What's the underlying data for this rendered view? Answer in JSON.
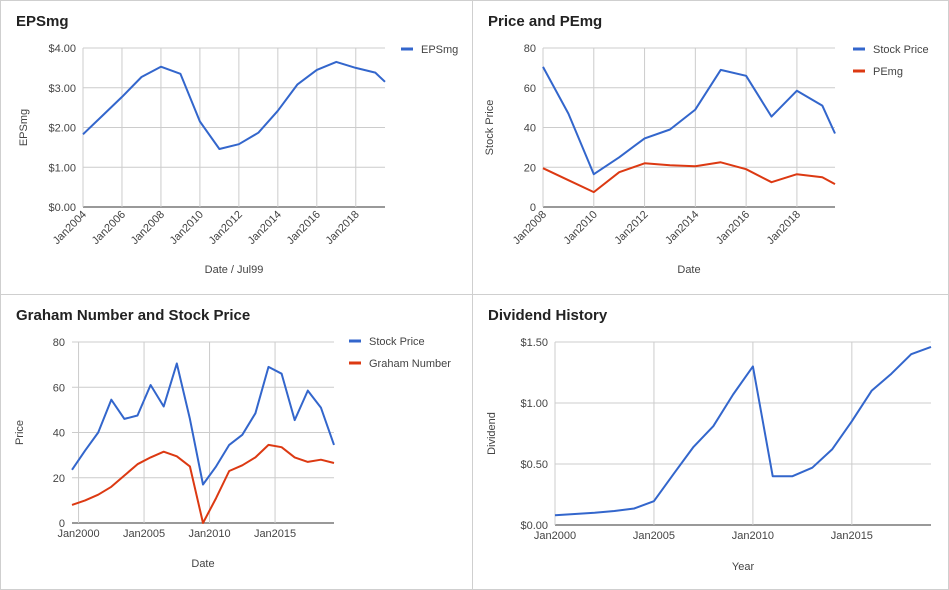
{
  "chart_data": [
    {
      "type": "line",
      "title": "EPSmg",
      "xlabel": "Date / Jul99",
      "ylabel": "EPSmg",
      "ylim": [
        0,
        4
      ],
      "yticks": [
        "$0.00",
        "$1.00",
        "$2.00",
        "$3.00",
        "$4.00"
      ],
      "xlim": [
        2004,
        2019.5
      ],
      "xticks": [
        "Jan2004",
        "Jan2006",
        "Jan2008",
        "Jan2010",
        "Jan2012",
        "Jan2014",
        "Jan2016",
        "Jan2018"
      ],
      "legend_position": "top-right",
      "series": [
        {
          "name": "EPSmg",
          "color": "#3366cc",
          "x": [
            2004,
            2005,
            2006,
            2007,
            2008,
            2009,
            2010,
            2011,
            2012,
            2013,
            2014,
            2015,
            2016,
            2017,
            2018,
            2019,
            2019.5
          ],
          "y": [
            1.83,
            2.3,
            2.77,
            3.27,
            3.53,
            3.35,
            2.15,
            1.46,
            1.58,
            1.87,
            2.42,
            3.08,
            3.45,
            3.65,
            3.5,
            3.38,
            3.15
          ]
        }
      ]
    },
    {
      "type": "line",
      "title": "Price and PEmg",
      "xlabel": "Date",
      "ylabel": "Stock Price",
      "ylim": [
        0,
        80
      ],
      "yticks": [
        "0",
        "20",
        "40",
        "60",
        "80"
      ],
      "xlim": [
        2008,
        2019.5
      ],
      "xticks": [
        "Jan2008",
        "Jan2010",
        "Jan2012",
        "Jan2014",
        "Jan2016",
        "Jan2018"
      ],
      "legend_position": "top-right",
      "series": [
        {
          "name": "Stock Price",
          "color": "#3366cc",
          "x": [
            2008,
            2009,
            2010,
            2011,
            2012,
            2013,
            2014,
            2015,
            2016,
            2017,
            2018,
            2019,
            2019.5
          ],
          "y": [
            70.5,
            47,
            16.5,
            25,
            34.5,
            39,
            49,
            69,
            66,
            45.5,
            58.5,
            51,
            37
          ]
        },
        {
          "name": "PEmg",
          "color": "#dc3912",
          "x": [
            2008,
            2009,
            2010,
            2011,
            2012,
            2013,
            2014,
            2015,
            2016,
            2017,
            2018,
            2019,
            2019.5
          ],
          "y": [
            19.5,
            13.5,
            7.5,
            17.5,
            22,
            21,
            20.5,
            22.5,
            19,
            12.5,
            16.5,
            15,
            11.5
          ]
        }
      ]
    },
    {
      "type": "line",
      "title": "Graham Number and Stock Price",
      "xlabel": "Date",
      "ylabel": "Price",
      "ylim": [
        0,
        80
      ],
      "yticks": [
        "0",
        "20",
        "40",
        "60",
        "80"
      ],
      "xlim": [
        1999.5,
        2019.5
      ],
      "xticks": [
        "Jan2000",
        "Jan2005",
        "Jan2010",
        "Jan2015"
      ],
      "legend_position": "top-right",
      "series": [
        {
          "name": "Stock Price",
          "color": "#3366cc",
          "x": [
            1999.5,
            2000.5,
            2001.5,
            2002.5,
            2003.5,
            2004.5,
            2005.5,
            2006.5,
            2007.5,
            2008.5,
            2009.5,
            2010.5,
            2011.5,
            2012.5,
            2013.5,
            2014.5,
            2015.5,
            2016.5,
            2017.5,
            2018.5,
            2019.5
          ],
          "y": [
            23.5,
            32,
            40,
            54.5,
            46,
            47.5,
            61,
            51.5,
            70.5,
            46,
            17,
            25,
            34.5,
            39,
            48.5,
            69,
            66,
            45.5,
            58.5,
            51,
            34.5
          ]
        },
        {
          "name": "Graham Number",
          "color": "#dc3912",
          "x": [
            1999.5,
            2000.5,
            2001.5,
            2002.5,
            2003.5,
            2004.5,
            2005.5,
            2006.5,
            2007.5,
            2008.5,
            2009.5,
            2010.5,
            2011.5,
            2012.5,
            2013.5,
            2014.5,
            2015.5,
            2016.5,
            2017.5,
            2018.5,
            2019.5
          ],
          "y": [
            8,
            10,
            12.5,
            16,
            21,
            26,
            29,
            31.5,
            29.5,
            25,
            0,
            11,
            23,
            25.5,
            29,
            34.5,
            33.5,
            29,
            27,
            28,
            26.5
          ]
        }
      ]
    },
    {
      "type": "line",
      "title": "Dividend History",
      "xlabel": "Year",
      "ylabel": "Dividend",
      "ylim": [
        0,
        1.5
      ],
      "yticks": [
        "$0.00",
        "$0.50",
        "$1.00",
        "$1.50"
      ],
      "xlim": [
        2000,
        2019
      ],
      "xticks": [
        "Jan2000",
        "Jan2005",
        "Jan2010",
        "Jan2015"
      ],
      "legend_position": "none",
      "series": [
        {
          "name": "",
          "color": "#3366cc",
          "x": [
            2000,
            2001,
            2002,
            2003,
            2004,
            2005,
            2006,
            2007,
            2008,
            2009,
            2010,
            2011,
            2012,
            2013,
            2014,
            2015,
            2016,
            2017,
            2018,
            2019
          ],
          "y": [
            0.08,
            0.09,
            0.1,
            0.115,
            0.135,
            0.195,
            0.42,
            0.64,
            0.81,
            1.07,
            1.3,
            0.4,
            0.4,
            0.47,
            0.62,
            0.85,
            1.1,
            1.24,
            1.4,
            1.46
          ]
        }
      ]
    }
  ]
}
